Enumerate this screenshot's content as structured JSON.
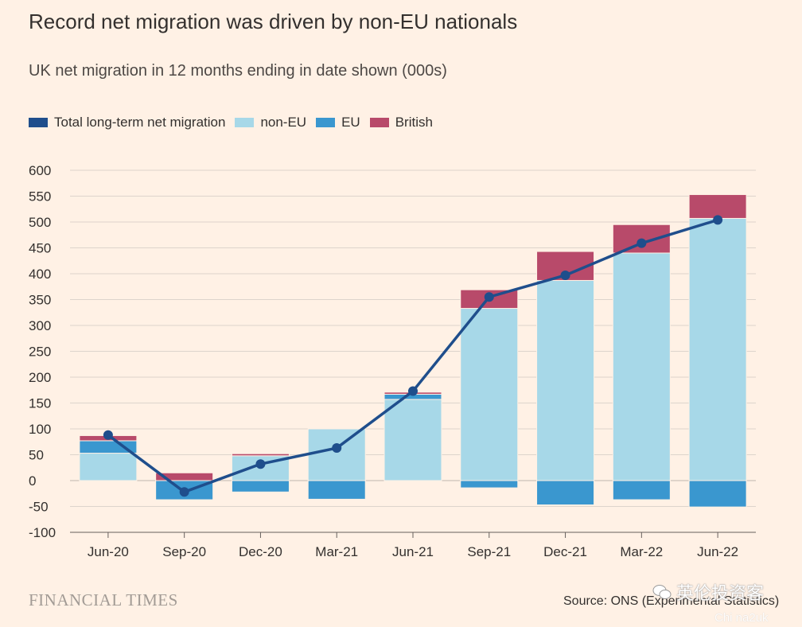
{
  "title": "Record net migration was driven by non-EU nationals",
  "subtitle": "UK net migration in 12 months ending in date shown (000s)",
  "legend": {
    "total": "Total long-term net migration",
    "noneu": "non-EU",
    "eu": "EU",
    "british": "British"
  },
  "colors": {
    "background": "#FFF1E5",
    "total": "#1F4E8C",
    "noneu": "#A7D8E8",
    "eu": "#3A97CF",
    "british": "#B84A6A"
  },
  "source": "Source: ONS (Experimental Statistics)",
  "logo": "FINANCIAL TIMES",
  "watermark": {
    "main": "英伦投资客",
    "sub": "Chi na2uk"
  },
  "chart_data": {
    "type": "bar",
    "stacked": true,
    "categories": [
      "Jun-20",
      "Sep-20",
      "Dec-20",
      "Mar-21",
      "Jun-21",
      "Sep-21",
      "Dec-21",
      "Mar-22",
      "Jun-22"
    ],
    "series": [
      {
        "name": "non-EU",
        "values": [
          53,
          0,
          48,
          100,
          157,
          333,
          387,
          440,
          507
        ]
      },
      {
        "name": "EU",
        "values": [
          24,
          -37,
          -22,
          -36,
          10,
          -14,
          -47,
          -37,
          -51
        ]
      },
      {
        "name": "British",
        "values": [
          10,
          15,
          4,
          0,
          4,
          36,
          56,
          55,
          46
        ]
      },
      {
        "name": "Total long-term net migration",
        "type": "line",
        "values": [
          88,
          -22,
          32,
          63,
          173,
          355,
          397,
          459,
          504
        ]
      }
    ],
    "ylim": [
      -100,
      600
    ],
    "yticks": [
      600,
      550,
      500,
      450,
      400,
      350,
      300,
      250,
      200,
      150,
      100,
      50,
      0,
      -50,
      -100
    ],
    "grid": true,
    "legend_position": "top"
  }
}
